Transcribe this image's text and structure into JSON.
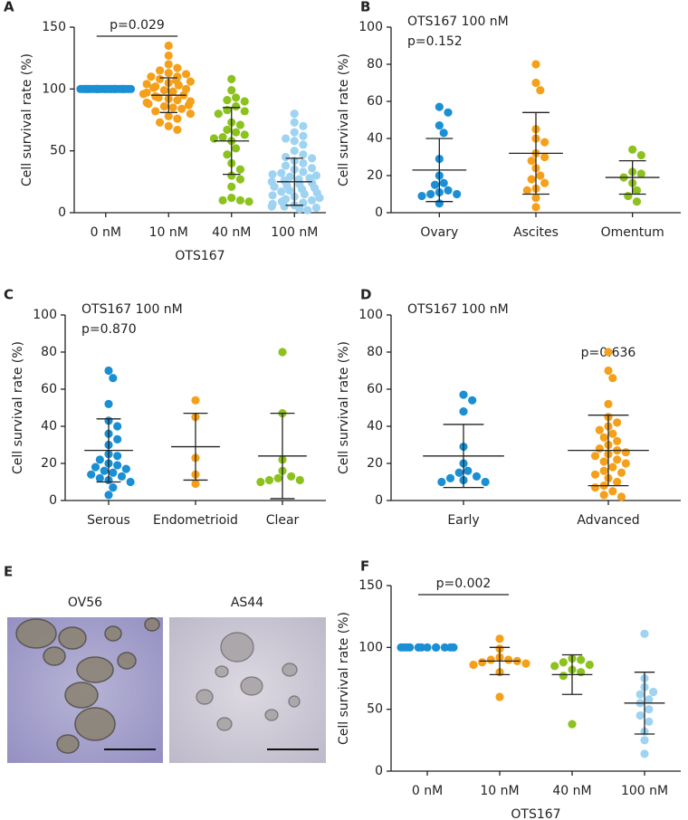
{
  "chart_data": [
    {
      "type": "dotplot",
      "panel": "A",
      "pvalue": "p=0.029",
      "bracket": true,
      "ylabel": "Cell survival rate (%)",
      "xlabel": "OTS167",
      "ylim": [
        0,
        150
      ],
      "yticks": [
        0,
        50,
        100,
        150
      ],
      "groups": [
        {
          "name": "0 nM",
          "color": "#1b8fd4",
          "values": [
            100,
            100,
            100,
            100,
            100,
            100,
            100,
            100,
            100,
            100,
            100,
            100,
            100,
            100,
            100,
            100,
            100,
            100,
            100,
            100,
            100,
            100,
            100,
            100,
            100,
            100,
            100,
            100,
            100,
            100
          ]
        },
        {
          "name": "10 nM",
          "color": "#f5a01a",
          "mean": 95,
          "sd": 14,
          "values": [
            135,
            127,
            120,
            117,
            115,
            113,
            112,
            110,
            110,
            108,
            107,
            106,
            105,
            104,
            103,
            102,
            101,
            100,
            99,
            98,
            97,
            96,
            95,
            94,
            93,
            92,
            91,
            90,
            89,
            88,
            87,
            86,
            85,
            84,
            82,
            80,
            78,
            76,
            73,
            70,
            67
          ]
        },
        {
          "name": "40 nM",
          "color": "#8cc21e",
          "mean": 58,
          "sd": 27,
          "values": [
            108,
            99,
            93,
            91,
            90,
            86,
            83,
            82,
            80,
            73,
            71,
            67,
            65,
            63,
            61,
            60,
            58,
            52,
            47,
            40,
            35,
            30,
            27,
            21,
            12,
            10,
            10,
            9
          ]
        },
        {
          "name": "100 nM",
          "color": "#9fd3f2",
          "mean": 25,
          "sd": 19,
          "values": [
            80,
            73,
            70,
            65,
            62,
            60,
            58,
            55,
            50,
            47,
            45,
            44,
            42,
            40,
            38,
            36,
            35,
            33,
            32,
            31,
            30,
            29,
            28,
            27,
            26,
            25,
            24,
            23,
            22,
            21,
            20,
            19,
            18,
            17,
            16,
            15,
            14,
            13,
            12,
            11,
            10,
            9,
            8,
            7,
            6,
            5,
            5,
            4,
            3,
            2
          ]
        }
      ]
    },
    {
      "type": "dotplot",
      "panel": "B",
      "annotation": "OTS167 100 nM",
      "pvalue": "p=0.152",
      "ylabel": "Cell survival rate (%)",
      "ylim": [
        0,
        100
      ],
      "yticks": [
        0,
        20,
        40,
        60,
        80,
        100
      ],
      "groups": [
        {
          "name": "Ovary",
          "color": "#1b8fd4",
          "mean": 23,
          "sd": 17,
          "values": [
            57,
            54,
            47,
            43,
            29,
            20,
            16,
            15,
            12,
            11,
            10,
            10,
            9,
            5
          ]
        },
        {
          "name": "Ascites",
          "color": "#f5a01a",
          "mean": 32,
          "sd": 22,
          "values": [
            80,
            70,
            66,
            45,
            40,
            38,
            32,
            30,
            28,
            24,
            20,
            18,
            16,
            13,
            12,
            8,
            3
          ]
        },
        {
          "name": "Omentum",
          "color": "#8cc21e",
          "mean": 19,
          "sd": 9,
          "values": [
            34,
            31,
            22,
            21,
            19,
            16,
            12,
            9,
            6
          ]
        }
      ]
    },
    {
      "type": "dotplot",
      "panel": "C",
      "annotation": "OTS167 100 nM",
      "pvalue": "p=0.870",
      "ylabel": "Cell survival rate (%)",
      "ylim": [
        0,
        100
      ],
      "yticks": [
        0,
        20,
        40,
        60,
        80,
        100
      ],
      "groups": [
        {
          "name": "Serous",
          "color": "#1b8fd4",
          "mean": 27,
          "sd": 17,
          "values": [
            70,
            66,
            52,
            43,
            40,
            36,
            33,
            30,
            25,
            24,
            22,
            20,
            19,
            18,
            17,
            16,
            15,
            14,
            13,
            12,
            11,
            10,
            7,
            3
          ]
        },
        {
          "name": "Endometrioid",
          "color": "#f5a01a",
          "mean": 29,
          "sd": 18,
          "values": [
            54,
            45,
            23,
            14,
            9
          ]
        },
        {
          "name": "Clear",
          "color": "#8cc21e",
          "mean": 24,
          "sd": 23,
          "values": [
            80,
            47,
            22,
            16,
            13,
            12,
            11,
            11,
            10
          ]
        }
      ]
    },
    {
      "type": "dotplot",
      "panel": "D",
      "annotation": "OTS167 100 nM",
      "pvalue": "p=0.636",
      "ylabel": "Cell survival rate (%)",
      "ylim": [
        0,
        100
      ],
      "yticks": [
        0,
        20,
        40,
        60,
        80,
        100
      ],
      "groups": [
        {
          "name": "Early",
          "color": "#1b8fd4",
          "mean": 24,
          "sd": 17,
          "values": [
            57,
            54,
            48,
            29,
            20,
            16,
            15,
            13,
            12,
            11,
            10,
            10
          ]
        },
        {
          "name": "Advanced",
          "color": "#f5a01a",
          "mean": 27,
          "sd": 19,
          "values": [
            80,
            70,
            66,
            52,
            45,
            42,
            40,
            38,
            36,
            34,
            32,
            30,
            28,
            27,
            26,
            25,
            24,
            22,
            21,
            20,
            18,
            16,
            15,
            14,
            12,
            10,
            8,
            7,
            5,
            3,
            2
          ]
        }
      ]
    },
    {
      "type": "dotplot",
      "panel": "F",
      "pvalue": "p=0.002",
      "bracket": true,
      "ylabel": "Cell survival rate (%)",
      "xlabel": "OTS167",
      "ylim": [
        0,
        150
      ],
      "yticks": [
        0,
        50,
        100,
        150
      ],
      "groups": [
        {
          "name": "0 nM",
          "color": "#1b8fd4",
          "values": [
            100,
            100,
            100,
            100,
            100,
            100,
            100,
            100,
            100,
            100,
            100,
            100,
            100
          ]
        },
        {
          "name": "10 nM",
          "color": "#f5a01a",
          "mean": 89,
          "sd": 11,
          "values": [
            107,
            99,
            92,
            90,
            90,
            89,
            88,
            87,
            86,
            80,
            60
          ]
        },
        {
          "name": "40 nM",
          "color": "#8cc21e",
          "mean": 78,
          "sd": 16,
          "values": [
            91,
            90,
            88,
            86,
            85,
            82,
            80,
            77,
            38
          ]
        },
        {
          "name": "100 nM",
          "color": "#9fd3f2",
          "mean": 55,
          "sd": 25,
          "values": [
            111,
            75,
            68,
            64,
            62,
            58,
            55,
            50,
            45,
            40,
            32,
            25,
            14
          ]
        }
      ]
    }
  ],
  "micrographs": {
    "panel": "E",
    "images": [
      "OV56",
      "AS44"
    ]
  }
}
